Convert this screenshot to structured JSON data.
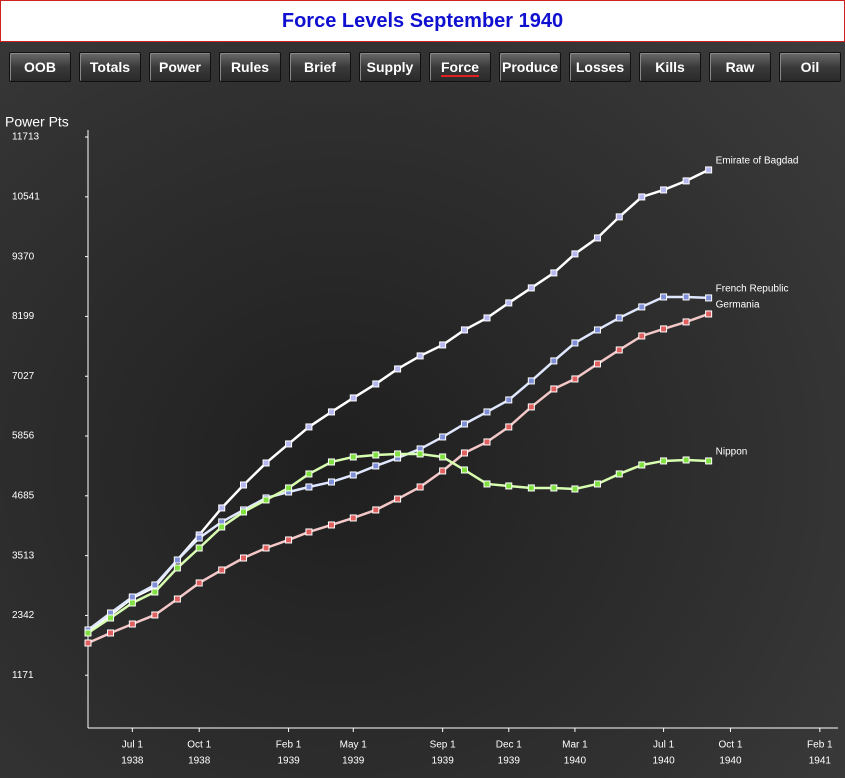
{
  "header": {
    "title": "Force Levels September 1940"
  },
  "tabs": [
    "OOB",
    "Totals",
    "Power",
    "Rules",
    "Brief",
    "Supply",
    "Force",
    "Produce",
    "Losses",
    "Kills",
    "Raw",
    "Oil"
  ],
  "active_tab": 6,
  "chart_data": {
    "type": "line",
    "y_label": "Power Pts",
    "x": [
      "1938-05-01",
      "1938-06-01",
      "1938-07-01",
      "1938-08-01",
      "1938-09-01",
      "1938-10-01",
      "1938-11-01",
      "1938-12-01",
      "1939-01-01",
      "1939-02-01",
      "1939-03-01",
      "1939-04-01",
      "1939-05-01",
      "1939-06-01",
      "1939-07-01",
      "1939-08-01",
      "1939-09-01",
      "1939-10-01",
      "1939-11-01",
      "1939-12-01",
      "1940-01-01",
      "1940-02-01",
      "1940-03-01",
      "1940-04-01",
      "1940-05-01",
      "1940-06-01",
      "1940-07-01",
      "1940-08-01",
      "1940-09-01"
    ],
    "xlim": [
      "1938-05-01",
      "1941-02-26"
    ],
    "xticks": [
      {
        "value": "1938-07-01",
        "label": "Jul 1",
        "year": "1938"
      },
      {
        "value": "1938-10-01",
        "label": "Oct 1",
        "year": "1938"
      },
      {
        "value": "1939-02-01",
        "label": "Feb 1",
        "year": "1939"
      },
      {
        "value": "1939-05-01",
        "label": "May 1",
        "year": "1939"
      },
      {
        "value": "1939-09-01",
        "label": "Sep 1",
        "year": "1939"
      },
      {
        "value": "1939-12-01",
        "label": "Dec 1",
        "year": "1939"
      },
      {
        "value": "1940-03-01",
        "label": "Mar 1",
        "year": "1940"
      },
      {
        "value": "1940-07-01",
        "label": "Jul 1",
        "year": "1940"
      },
      {
        "value": "1940-10-01",
        "label": "Oct 1",
        "year": "1940"
      },
      {
        "value": "1941-02-01",
        "label": "Feb 1",
        "year": "1941"
      }
    ],
    "ylim": [
      0,
      11713
    ],
    "yticks": [
      1171,
      2342,
      3513,
      4685,
      5856,
      7027,
      8199,
      9370,
      10541,
      11713
    ],
    "series": [
      {
        "name": "Emirate of Bagdad",
        "color": "#b8b8f0",
        "line_color": "#ffffff",
        "values": [
          2018,
          2351,
          2684,
          2899,
          3428,
          3918,
          4447,
          4897,
          5328,
          5701,
          6034,
          6328,
          6602,
          6876,
          7170,
          7425,
          7640,
          7934,
          8169,
          8463,
          8757,
          9051,
          9423,
          9736,
          10148,
          10539,
          10676,
          10853,
          11068
        ]
      },
      {
        "name": "French Republic",
        "color": "#8090d8",
        "line_color": "#e0e8ff",
        "values": [
          2057,
          2390,
          2703,
          2939,
          3428,
          3859,
          4173,
          4408,
          4643,
          4760,
          4858,
          4956,
          5093,
          5270,
          5426,
          5603,
          5838,
          6092,
          6328,
          6563,
          6935,
          7327,
          7679,
          7934,
          8169,
          8385,
          8580,
          8580,
          8561
        ]
      },
      {
        "name": "Germania",
        "color": "#e06060",
        "line_color": "#f4c8c8",
        "values": [
          1802,
          1998,
          2174,
          2351,
          2664,
          2978,
          3232,
          3467,
          3663,
          3820,
          3977,
          4114,
          4251,
          4408,
          4623,
          4858,
          5172,
          5524,
          5740,
          6034,
          6426,
          6778,
          6974,
          7268,
          7542,
          7816,
          7954,
          8091,
          8247
        ]
      },
      {
        "name": "Nippon",
        "color": "#80e040",
        "line_color": "#d8ffb0",
        "values": [
          1998,
          2292,
          2586,
          2801,
          3272,
          3663,
          4075,
          4369,
          4604,
          4839,
          5113,
          5348,
          5446,
          5485,
          5505,
          5505,
          5446,
          5191,
          4917,
          4878,
          4839,
          4839,
          4819,
          4917,
          5113,
          5289,
          5368,
          5387,
          5368
        ]
      }
    ]
  }
}
